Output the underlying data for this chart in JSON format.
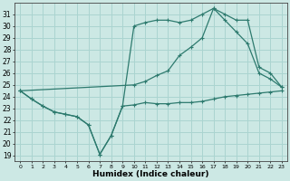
{
  "xlabel": "Humidex (Indice chaleur)",
  "background_color": "#cce8e4",
  "grid_color": "#aad4d0",
  "line_color": "#2d7a6e",
  "xlim": [
    -0.5,
    23.5
  ],
  "ylim": [
    18.5,
    32
  ],
  "yticks": [
    19,
    20,
    21,
    22,
    23,
    24,
    25,
    26,
    27,
    28,
    29,
    30,
    31
  ],
  "xticks": [
    0,
    1,
    2,
    3,
    4,
    5,
    6,
    7,
    8,
    9,
    10,
    11,
    12,
    13,
    14,
    15,
    16,
    17,
    18,
    19,
    20,
    21,
    22,
    23
  ],
  "line1_x": [
    0,
    1,
    2,
    3,
    4,
    5,
    6,
    7,
    8,
    9,
    10,
    11,
    12,
    13,
    14,
    15,
    16,
    17,
    18,
    19,
    20,
    21,
    22,
    23
  ],
  "line1_y": [
    24.5,
    23.8,
    23.2,
    22.7,
    22.5,
    22.3,
    21.6,
    19.1,
    20.7,
    23.2,
    23.3,
    23.5,
    23.4,
    23.4,
    23.5,
    23.5,
    23.6,
    23.8,
    24.0,
    24.1,
    24.2,
    24.3,
    24.4,
    24.5
  ],
  "line2_x": [
    0,
    1,
    2,
    3,
    4,
    5,
    6,
    7,
    8,
    9,
    10,
    11,
    12,
    13,
    14,
    15,
    16,
    17,
    18,
    19,
    20,
    21,
    22,
    23
  ],
  "line2_y": [
    24.5,
    23.8,
    23.2,
    22.7,
    22.5,
    22.3,
    21.6,
    19.1,
    20.7,
    23.2,
    30.0,
    30.3,
    30.5,
    30.5,
    30.3,
    30.5,
    31.0,
    31.5,
    30.5,
    29.5,
    28.5,
    26.0,
    25.5,
    24.8
  ],
  "line3_x": [
    0,
    10,
    11,
    12,
    13,
    14,
    15,
    16,
    17,
    18,
    19,
    20,
    21,
    22,
    23
  ],
  "line3_y": [
    24.5,
    25.0,
    25.3,
    25.8,
    26.2,
    27.5,
    28.2,
    29.0,
    31.5,
    31.0,
    30.5,
    30.5,
    26.5,
    26.0,
    24.8
  ]
}
